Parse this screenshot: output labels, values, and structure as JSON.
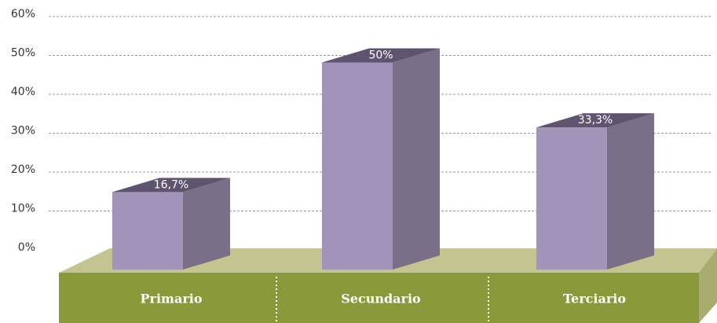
{
  "chart_data": {
    "type": "bar3d",
    "categories": [
      "Primario",
      "Secundario",
      "Terciario"
    ],
    "values": [
      16.7,
      50,
      33.3
    ],
    "value_labels": [
      "16,7%",
      "50%",
      "33,3%"
    ],
    "ylim": [
      0,
      60
    ],
    "yticks": [
      {
        "value": 0,
        "label": "0%"
      },
      {
        "value": 10,
        "label": "10%"
      },
      {
        "value": 20,
        "label": "20%"
      },
      {
        "value": 30,
        "label": "30%"
      },
      {
        "value": 40,
        "label": "40%"
      },
      {
        "value": 50,
        "label": "50%"
      },
      {
        "value": 60,
        "label": "60%"
      }
    ],
    "grid": true,
    "color": "#a294b8"
  }
}
